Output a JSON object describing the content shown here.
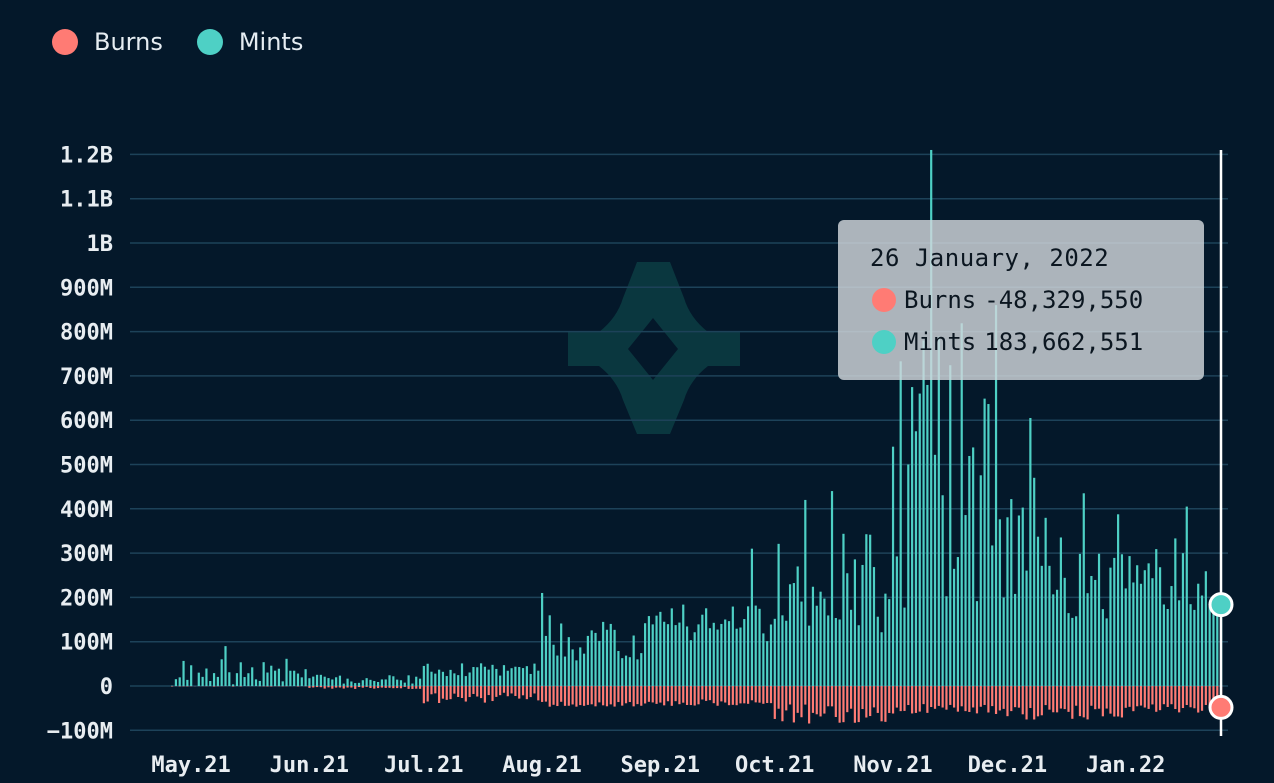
{
  "legend": [
    {
      "label": "Burns",
      "color": "#ff7b74"
    },
    {
      "label": "Mints",
      "color": "#4ed0c5"
    }
  ],
  "tooltip": {
    "date": "26 January, 2022",
    "burns_label": "Burns",
    "burns_value": "-48,329,550",
    "mints_label": "Mints",
    "mints_value": "183,662,551"
  },
  "chart_data": {
    "type": "bar",
    "y_ticks": [
      "1.2B",
      "1.1B",
      "1B",
      "900M",
      "800M",
      "700M",
      "600M",
      "500M",
      "400M",
      "300M",
      "200M",
      "100M",
      "0",
      "−100M"
    ],
    "y_tick_values": [
      1200000000,
      1100000000,
      1000000000,
      900000000,
      800000000,
      700000000,
      600000000,
      500000000,
      400000000,
      300000000,
      200000000,
      100000000,
      0,
      -100000000
    ],
    "ylim": [
      -100000000,
      1200000000
    ],
    "x_ticks": [
      "May.21",
      "Jun.21",
      "Jul.21",
      "Aug.21",
      "Sep.21",
      "Oct.21",
      "Nov.21",
      "Dec.21",
      "Jan.22"
    ],
    "x_range": [
      "2021-04-26",
      "2022-01-26"
    ],
    "grid": true,
    "legend_position": "top-left",
    "highlighted_date": "2022-01-26",
    "highlighted_mints": 183662551,
    "highlighted_burns": -48329550,
    "series_monthly_summary": [
      {
        "name": "Mints",
        "color": "#4ed0c5",
        "approx_range_by_month": {
          "May.21": [
            0,
            90000000
          ],
          "Jun.21": [
            5000000,
            35000000
          ],
          "Jul.21": [
            20000000,
            65000000
          ],
          "Aug.21": [
            50000000,
            210000000
          ],
          "Sep.21": [
            100000000,
            230000000
          ],
          "Oct.21": [
            120000000,
            440000000
          ],
          "Nov.21": [
            150000000,
            1210000000
          ],
          "Dec.21": [
            150000000,
            610000000
          ],
          "Jan.22": [
            170000000,
            405000000
          ]
        }
      },
      {
        "name": "Burns",
        "color": "#ff7b74",
        "approx_range_by_month": {
          "May.21": [
            -2000000,
            0
          ],
          "Jun.21": [
            -10000000,
            -2000000
          ],
          "Jul.21": [
            -55000000,
            -15000000
          ],
          "Aug.21": [
            -55000000,
            -35000000
          ],
          "Sep.21": [
            -55000000,
            -30000000
          ],
          "Oct.21": [
            -115000000,
            -40000000
          ],
          "Nov.21": [
            -80000000,
            -40000000
          ],
          "Dec.21": [
            -100000000,
            -40000000
          ],
          "Jan.22": [
            -75000000,
            -40000000
          ]
        }
      }
    ]
  }
}
